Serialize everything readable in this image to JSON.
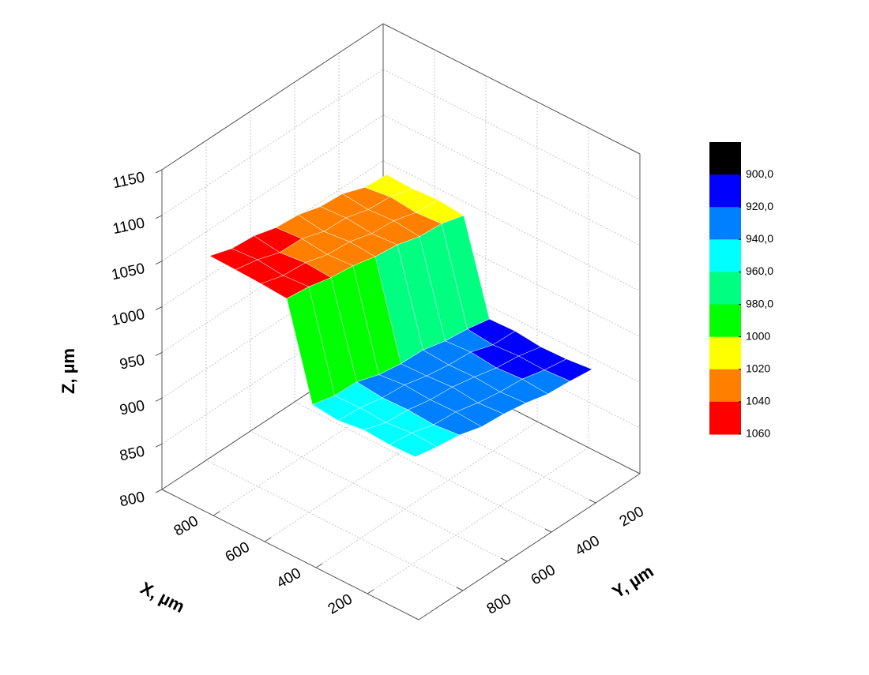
{
  "chart_data": {
    "type": "surface3d",
    "x_label": "X, µm",
    "y_label": "Y, µm",
    "z_label": "Z, µm",
    "x": [
      100,
      200,
      300,
      400,
      500,
      600,
      700,
      800,
      900
    ],
    "y": [
      100,
      200,
      300,
      400,
      500,
      600,
      700,
      800,
      900
    ],
    "z": [
      [
        916,
        919,
        921,
        927,
        931,
        933,
        940,
        943,
        948
      ],
      [
        913,
        917,
        923,
        925,
        929,
        935,
        937,
        944,
        947
      ],
      [
        912,
        918,
        921,
        927,
        932,
        934,
        939,
        941,
        949
      ],
      [
        915,
        916,
        924,
        926,
        930,
        936,
        938,
        943,
        945
      ],
      [
        914,
        919,
        922,
        928,
        929,
        933,
        941,
        942,
        948
      ],
      [
        1013,
        1020,
        1022,
        1029,
        1032,
        1038,
        1041,
        1047,
        1050
      ],
      [
        1016,
        1018,
        1025,
        1027,
        1034,
        1036,
        1043,
        1045,
        1052
      ],
      [
        1014,
        1021,
        1023,
        1030,
        1031,
        1039,
        1040,
        1048,
        1053
      ],
      [
        1015,
        1017,
        1026,
        1028,
        1035,
        1037,
        1044,
        1046,
        1054
      ]
    ],
    "xlim": [
      0,
      1000
    ],
    "ylim": [
      0,
      1000
    ],
    "zlim": [
      800,
      1150
    ],
    "xticks": [
      200,
      400,
      600,
      800
    ],
    "yticks": [
      200,
      400,
      600,
      800
    ],
    "zticks": [
      800,
      850,
      900,
      950,
      1000,
      1050,
      1100,
      1150
    ],
    "grid": true,
    "colorbar": {
      "levels": [
        {
          "value": 900,
          "label": "900,0"
        },
        {
          "value": 920,
          "label": "920,0"
        },
        {
          "value": 940,
          "label": "940,0"
        },
        {
          "value": 960,
          "label": "960,0"
        },
        {
          "value": 980,
          "label": "980,0"
        },
        1000,
        1020,
        1040,
        1060
      ],
      "colors": [
        "#000000",
        "#0000ff",
        "#0080ff",
        "#00ffff",
        "#00ff80",
        "#00ff00",
        "#ffff00",
        "#ff8000",
        "#ff0000"
      ]
    }
  }
}
